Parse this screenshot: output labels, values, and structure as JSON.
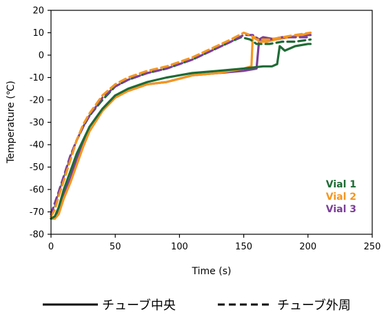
{
  "chart_data": {
    "type": "line",
    "xlabel": "Time (s)",
    "ylabel": "Temperature (℃)",
    "xlim": [
      0,
      250
    ],
    "ylim": [
      -80,
      20
    ],
    "xticks": [
      0,
      50,
      100,
      150,
      200,
      250
    ],
    "yticks": [
      20,
      10,
      0,
      -10,
      -20,
      -30,
      -40,
      -50,
      -60,
      -70,
      -80
    ],
    "grid": false,
    "vial_labels": [
      {
        "name": "Vial 1",
        "color": "#1e6b35"
      },
      {
        "name": "Vial 2",
        "color": "#f5961e"
      },
      {
        "name": "Vial 3",
        "color": "#7b3f98"
      }
    ],
    "line_style_legend": [
      {
        "label": "チューブ中央",
        "dash": "solid"
      },
      {
        "label": "チューブ外周",
        "dash": "dashed"
      }
    ],
    "series": [
      {
        "vial": 3,
        "position": "center",
        "color": "#7b3f98",
        "dash": "solid",
        "x": [
          0,
          3,
          6,
          10,
          15,
          20,
          25,
          30,
          40,
          50,
          60,
          75,
          90,
          110,
          130,
          150,
          160,
          162,
          165,
          175,
          185,
          195,
          202
        ],
        "y": [
          -73,
          -73,
          -70,
          -62,
          -55,
          -46,
          -39,
          -32,
          -24,
          -18,
          -16,
          -13,
          -12,
          -9,
          -8,
          -7,
          -6,
          7,
          8,
          7,
          8,
          9,
          9
        ]
      },
      {
        "vial": 2,
        "position": "center",
        "color": "#f5961e",
        "dash": "solid",
        "x": [
          0,
          3,
          6,
          10,
          15,
          20,
          25,
          30,
          40,
          50,
          60,
          75,
          90,
          110,
          130,
          150,
          156,
          157,
          159,
          162,
          168,
          175,
          185,
          195,
          202
        ],
        "y": [
          -73,
          -73,
          -71,
          -64,
          -57,
          -49,
          -41,
          -34,
          -25,
          -19,
          -16,
          -13,
          -12,
          -9,
          -8,
          -6,
          -5,
          8,
          8,
          6,
          6,
          7,
          8,
          9,
          10
        ]
      },
      {
        "vial": 1,
        "position": "center",
        "color": "#1e6b35",
        "dash": "solid",
        "x": [
          0,
          3,
          6,
          10,
          15,
          20,
          25,
          30,
          40,
          50,
          60,
          75,
          90,
          110,
          130,
          150,
          165,
          172,
          176,
          178,
          182,
          190,
          200,
          202
        ],
        "y": [
          -73,
          -72,
          -68,
          -60,
          -52,
          -44,
          -38,
          -32,
          -24,
          -18,
          -15,
          -12,
          -10,
          -8,
          -7,
          -6,
          -5,
          -5,
          -4,
          4,
          2,
          4,
          5,
          5
        ]
      },
      {
        "vial": 1,
        "position": "outer",
        "color": "#1e6b35",
        "dash": "dashed",
        "x": [
          0,
          3,
          6,
          10,
          15,
          20,
          25,
          30,
          40,
          50,
          60,
          75,
          90,
          110,
          125,
          140,
          148,
          155,
          160,
          170,
          180,
          190,
          202
        ],
        "y": [
          -72,
          -68,
          -62,
          -55,
          -46,
          -38,
          -32,
          -27,
          -20,
          -14,
          -11,
          -8,
          -6,
          -2,
          2,
          6,
          8,
          7,
          5,
          5,
          6,
          6,
          7
        ]
      },
      {
        "vial": 3,
        "position": "outer",
        "color": "#7b3f98",
        "dash": "dashed",
        "x": [
          0,
          3,
          6,
          10,
          15,
          20,
          25,
          30,
          40,
          50,
          60,
          75,
          90,
          110,
          125,
          140,
          150,
          157,
          162,
          170,
          180,
          190,
          202
        ],
        "y": [
          -71,
          -66,
          -61,
          -54,
          -45,
          -38,
          -32,
          -27,
          -19,
          -14,
          -11,
          -8,
          -6,
          -2,
          2,
          6,
          9,
          9,
          7,
          7,
          8,
          8,
          8
        ]
      },
      {
        "vial": 2,
        "position": "outer",
        "color": "#f5961e",
        "dash": "dashed",
        "x": [
          0,
          3,
          6,
          10,
          15,
          20,
          25,
          30,
          40,
          50,
          60,
          75,
          90,
          110,
          125,
          140,
          150,
          155,
          160,
          170,
          180,
          190,
          202
        ],
        "y": [
          -72,
          -69,
          -63,
          -56,
          -47,
          -38,
          -31,
          -26,
          -18,
          -13,
          -10,
          -7,
          -5,
          -1,
          3,
          7,
          10,
          9,
          7,
          7,
          8,
          9,
          10
        ]
      }
    ]
  }
}
